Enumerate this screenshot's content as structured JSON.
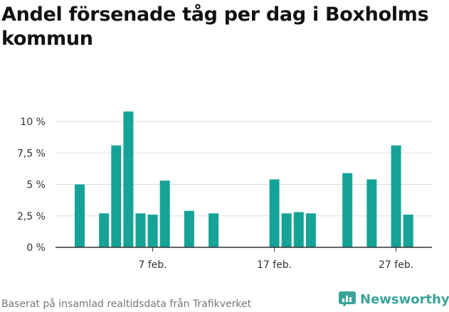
{
  "title": "Andel försenade tåg per dag i Boxholms kommun",
  "footer": "Baserat på insamlad realtidsdata från Trafikverket",
  "brand": {
    "name": "Newsworthy",
    "icon": "newsworthy-logo-icon"
  },
  "colors": {
    "bar": "#14a396",
    "grid": "#dddddd",
    "axis": "#333333",
    "text": "#333333"
  },
  "chart_data": {
    "type": "bar",
    "title": "Andel försenade tåg per dag i Boxholms kommun",
    "xlabel": "",
    "ylabel": "",
    "ylim": [
      0,
      11
    ],
    "grid": true,
    "y_ticks": [
      {
        "value": 0,
        "label": "0 %"
      },
      {
        "value": 2.5,
        "label": "2,5 %"
      },
      {
        "value": 5,
        "label": "5 %"
      },
      {
        "value": 7.5,
        "label": "7,5 %"
      },
      {
        "value": 10,
        "label": "10 %"
      }
    ],
    "x_ticks": [
      {
        "day": 7,
        "label": "7 feb."
      },
      {
        "day": 17,
        "label": "17 feb."
      },
      {
        "day": 27,
        "label": "27 feb."
      }
    ],
    "x_range": [
      0,
      30
    ],
    "days": [
      1,
      3,
      4,
      5,
      6,
      7,
      8,
      10,
      12,
      17,
      18,
      19,
      20,
      23,
      25,
      27,
      28
    ],
    "values": [
      5.0,
      2.7,
      8.1,
      10.8,
      2.7,
      2.6,
      5.3,
      2.9,
      2.7,
      5.4,
      2.7,
      2.8,
      2.7,
      5.9,
      5.4,
      8.1,
      2.6
    ]
  }
}
